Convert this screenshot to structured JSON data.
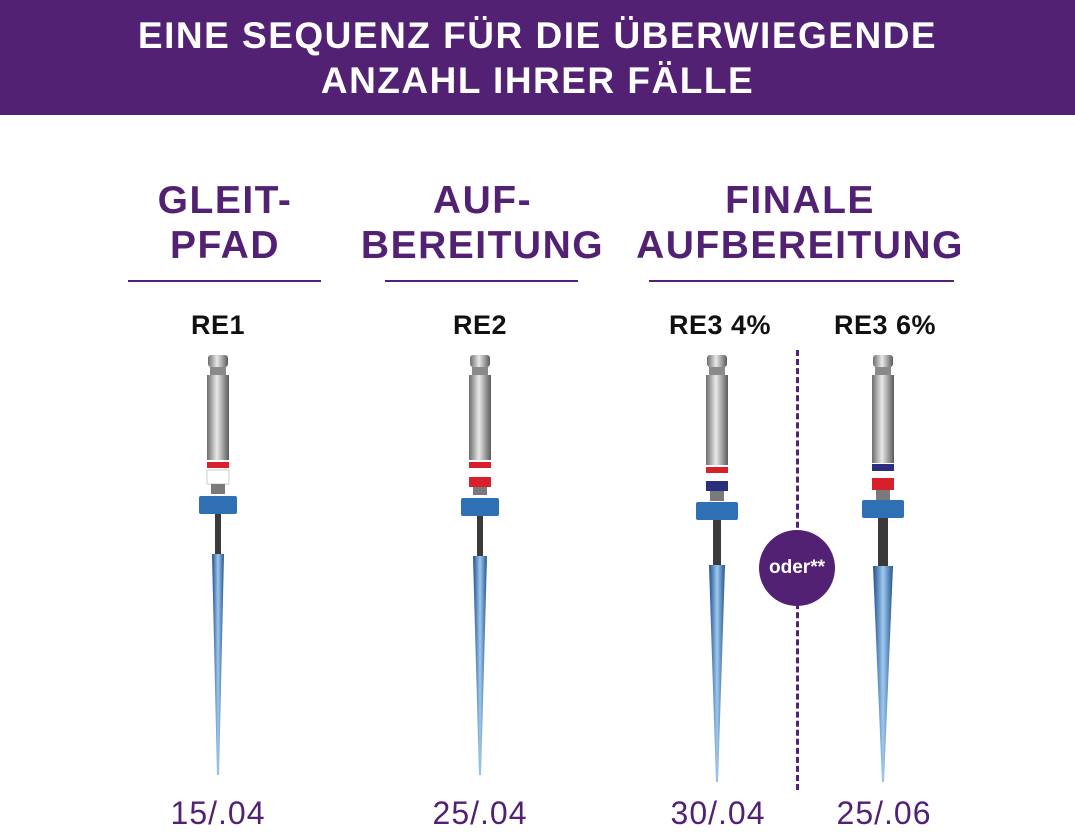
{
  "banner": {
    "line1": "EINE SEQUENZ FÜR DIE ÜBERWIEGENDE",
    "line2": "ANZAHL IHRER FÄLLE"
  },
  "columns": [
    {
      "heading1": "GLEIT-",
      "heading2": "PFAD"
    },
    {
      "heading1": "AUF-",
      "heading2": "BEREITUNG"
    },
    {
      "heading1": "FINALE",
      "heading2": "AUFBEREITUNG"
    }
  ],
  "files": [
    {
      "name": "RE1",
      "size": "15/.04",
      "rings": [
        "white"
      ]
    },
    {
      "name": "RE2",
      "size": "25/.04",
      "rings": [
        "red"
      ]
    },
    {
      "name": "RE3 4%",
      "size": "30/.04",
      "rings": [
        "blue"
      ]
    },
    {
      "name": "RE3 6%",
      "size": "25/.06",
      "rings": [
        "red"
      ]
    }
  ],
  "separator_label": "oder**",
  "colors": {
    "brand_purple": "#532174",
    "red": "#d8202a",
    "navy": "#2a2e7c",
    "white": "#ffffff",
    "stopper_blue": "#2f6fb3"
  }
}
